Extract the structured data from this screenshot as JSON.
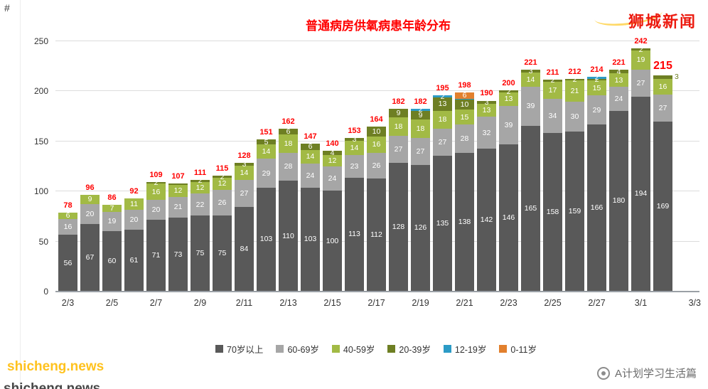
{
  "page": {
    "corner_glyph": "#",
    "watermark_topright": "狮城新闻",
    "watermark_bottomleft": "shicheng.news",
    "credit_bottomright": "A计划学习生活篇"
  },
  "chart_data": {
    "type": "bar",
    "stacked": true,
    "title": "普通病房供氧病患年龄分布",
    "title_color": "#ff0000",
    "grid": true,
    "legend_position": "bottom",
    "ylim": [
      0,
      250
    ],
    "yticks": [
      0,
      50,
      100,
      150,
      200,
      250
    ],
    "x_tick_labels": [
      "2/3",
      "2/5",
      "2/7",
      "2/9",
      "2/11",
      "2/13",
      "2/15",
      "2/17",
      "2/19",
      "2/21",
      "2/23",
      "2/25",
      "2/27",
      "3/1",
      "3/3"
    ],
    "categories": [
      "2/3",
      "2/4",
      "2/5",
      "2/6",
      "2/7",
      "2/8",
      "2/9",
      "2/10",
      "2/11",
      "2/12",
      "2/13",
      "2/14",
      "2/15",
      "2/16",
      "2/17",
      "2/18",
      "2/19",
      "2/20",
      "2/21",
      "2/22",
      "2/23",
      "2/24",
      "2/25",
      "2/26",
      "2/27",
      "2/28",
      "3/1",
      "3/2"
    ],
    "series": [
      {
        "name": "70岁以上",
        "color": "#595959",
        "values": [
          56,
          67,
          60,
          61,
          71,
          73,
          75,
          75,
          84,
          103,
          110,
          103,
          100,
          113,
          112,
          128,
          126,
          135,
          138,
          142,
          146,
          165,
          158,
          159,
          166,
          180,
          194,
          169
        ]
      },
      {
        "name": "60-69岁",
        "color": "#a6a6a6",
        "values": [
          16,
          20,
          19,
          20,
          20,
          21,
          22,
          26,
          27,
          29,
          28,
          24,
          24,
          23,
          26,
          27,
          27,
          27,
          28,
          32,
          39,
          39,
          34,
          30,
          29,
          24,
          27,
          27
        ]
      },
      {
        "name": "40-59岁",
        "color": "#a2ba45",
        "values": [
          6,
          9,
          7,
          11,
          16,
          12,
          12,
          12,
          14,
          14,
          18,
          14,
          12,
          14,
          16,
          18,
          18,
          18,
          15,
          13,
          13,
          14,
          17,
          21,
          15,
          13,
          19,
          16
        ]
      },
      {
        "name": "20-39岁",
        "color": "#6e7f23",
        "values": [
          0,
          0,
          0,
          0,
          2,
          1,
          2,
          2,
          3,
          5,
          6,
          6,
          4,
          3,
          10,
          9,
          9,
          13,
          10,
          3,
          2,
          3,
          2,
          2,
          2,
          4,
          2,
          3
        ]
      },
      {
        "name": "12-19岁",
        "color": "#2c9bc6",
        "values": [
          0,
          0,
          0,
          0,
          0,
          0,
          0,
          0,
          0,
          0,
          0,
          0,
          0,
          0,
          0,
          0,
          2,
          2,
          1,
          0,
          0,
          0,
          0,
          0,
          2,
          0,
          0,
          0
        ]
      },
      {
        "name": "0-11岁",
        "color": "#e2802d",
        "values": [
          0,
          0,
          0,
          0,
          0,
          0,
          0,
          0,
          0,
          0,
          0,
          0,
          0,
          0,
          0,
          0,
          0,
          0,
          6,
          0,
          0,
          0,
          0,
          0,
          0,
          0,
          0,
          0
        ]
      }
    ],
    "totals": [
      78,
      96,
      86,
      92,
      109,
      107,
      111,
      115,
      128,
      151,
      162,
      147,
      140,
      153,
      164,
      182,
      182,
      195,
      198,
      190,
      200,
      221,
      211,
      212,
      214,
      221,
      242,
      215
    ],
    "total_label_color": "#ff0000"
  }
}
